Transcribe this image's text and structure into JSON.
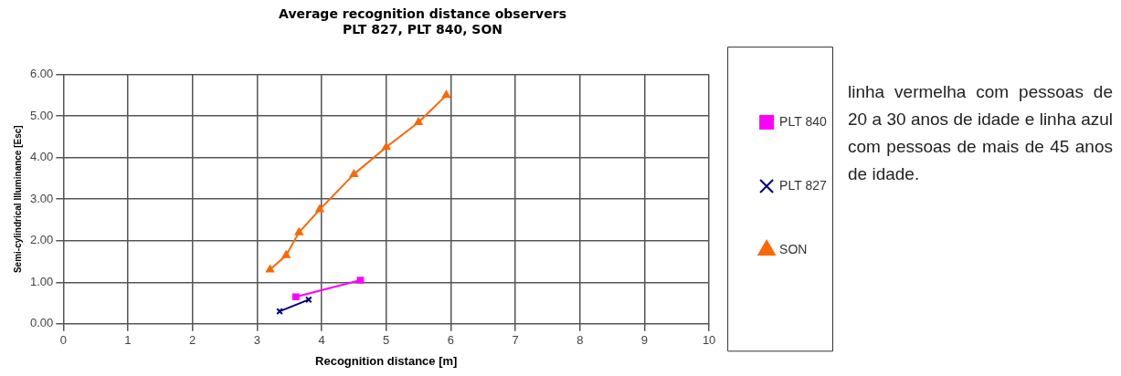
{
  "chart_data": {
    "type": "line",
    "title": [
      "Average recognition distance observers",
      "PLT 827, PLT 840, SON"
    ],
    "xlabel": "Recognition distance [m]",
    "ylabel": "Semi-cylindrical Illuminance [Esc]",
    "xlim": [
      0,
      10
    ],
    "xticks": [
      0,
      1,
      2,
      3,
      4,
      5,
      6,
      7,
      8,
      9,
      10
    ],
    "ylim": [
      0,
      6
    ],
    "yticks": [
      {
        "value": 0,
        "label": "0.00"
      },
      {
        "value": 1,
        "label": "1.00"
      },
      {
        "value": 2,
        "label": "2.00"
      },
      {
        "value": 3,
        "label": "3.00"
      },
      {
        "value": 4,
        "label": "4.00"
      },
      {
        "value": 5,
        "label": "5.00"
      },
      {
        "value": 6,
        "label": "6.00"
      }
    ],
    "grid": true,
    "legend": "right",
    "line_style": "solid",
    "series": [
      {
        "name": "PLT 840",
        "color": "#ff00ff",
        "marker": "square",
        "x": [
          3.6,
          4.6
        ],
        "values": [
          0.65,
          1.05
        ]
      },
      {
        "name": "PLT 827",
        "color": "#000080",
        "marker": "cross",
        "x": [
          3.35,
          3.8
        ],
        "values": [
          0.3,
          0.58
        ]
      },
      {
        "name": "SON",
        "color": "#ff6600",
        "marker": "triangle",
        "x": [
          3.2,
          3.45,
          3.65,
          3.97,
          4.5,
          5.0,
          5.5,
          5.93
        ],
        "values": [
          1.3,
          1.65,
          2.2,
          2.75,
          3.6,
          4.25,
          4.85,
          5.5
        ]
      }
    ],
    "annotations": [
      "linha vermelha com pessoas de 20 a 30 anos de idade e linha azul com pessoas de mais de 45 anos de idade."
    ]
  }
}
